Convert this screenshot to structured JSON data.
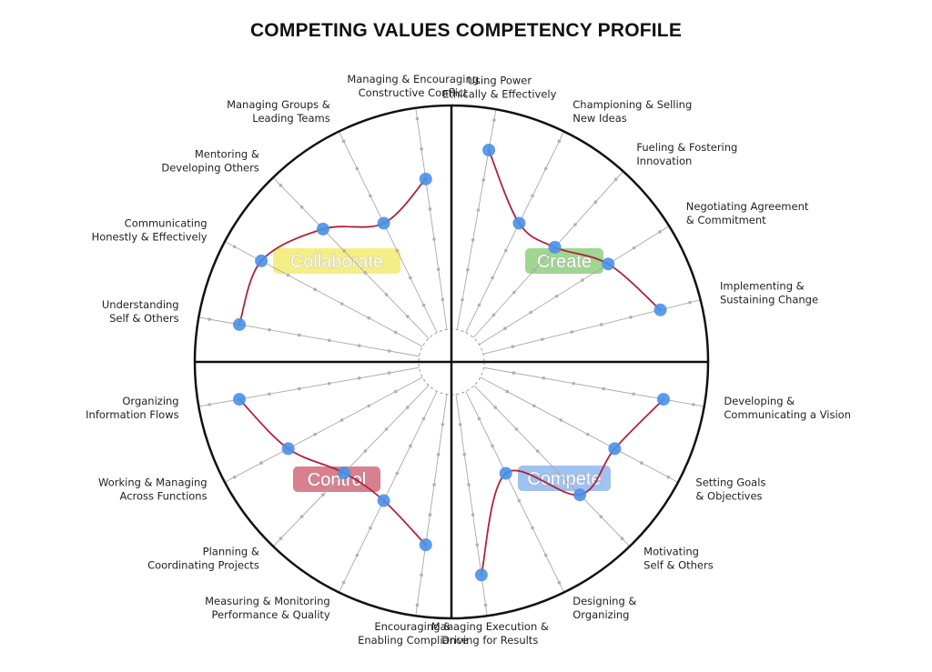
{
  "title": "COMPETING VALUES COMPETENCY PROFILE",
  "chart_data": {
    "type": "radar",
    "title": "COMPETING VALUES COMPETENCY PROFILE",
    "scale_levels": 7,
    "quadrants": [
      {
        "name": "Collaborate",
        "color": "#f2ec6e"
      },
      {
        "name": "Create",
        "color": "#8fcf7e"
      },
      {
        "name": "Compete",
        "color": "#8fb7ef"
      },
      {
        "name": "Control",
        "color": "#d06a7a"
      }
    ],
    "competencies": [
      {
        "label": [
          "Using Power",
          "Ethically & Effectively"
        ],
        "quadrant": "Create",
        "value": 6
      },
      {
        "label": [
          "Championing & Selling",
          "New Ideas"
        ],
        "quadrant": "Create",
        "value": 4
      },
      {
        "label": [
          "Fueling & Fostering",
          "Innovation"
        ],
        "quadrant": "Create",
        "value": 4
      },
      {
        "label": [
          "Negotiating Agreement",
          "& Commitment"
        ],
        "quadrant": "Create",
        "value": 5
      },
      {
        "label": [
          "Implementing &",
          "Sustaining Change"
        ],
        "quadrant": "Create",
        "value": 6
      },
      {
        "label": [
          "Developing &",
          "Communicating a Vision"
        ],
        "quadrant": "Compete",
        "value": 6
      },
      {
        "label": [
          "Setting Goals",
          "& Objectives"
        ],
        "quadrant": "Compete",
        "value": 5
      },
      {
        "label": [
          "Motivating",
          "Self & Others"
        ],
        "quadrant": "Compete",
        "value": 5
      },
      {
        "label": [
          "Designing &",
          "Organizing"
        ],
        "quadrant": "Compete",
        "value": 3
      },
      {
        "label": [
          "Managing Execution &",
          "Driving for Results"
        ],
        "quadrant": "Compete",
        "value": 6
      },
      {
        "label": [
          "Encouraging &",
          "Enabling Compliance"
        ],
        "quadrant": "Control",
        "value": 5
      },
      {
        "label": [
          "Measuring & Monitoring",
          "Performance & Quality"
        ],
        "quadrant": "Control",
        "value": 4
      },
      {
        "label": [
          "Planning &",
          "Coordinating Projects"
        ],
        "quadrant": "Control",
        "value": 4
      },
      {
        "label": [
          "Working & Managing",
          "Across Functions"
        ],
        "quadrant": "Control",
        "value": 5
      },
      {
        "label": [
          "Organizing",
          "Information Flows"
        ],
        "quadrant": "Control",
        "value": 6
      },
      {
        "label": [
          "Understanding",
          "Self & Others"
        ],
        "quadrant": "Collaborate",
        "value": 6
      },
      {
        "label": [
          "Communicating",
          "Honestly & Effectively"
        ],
        "quadrant": "Collaborate",
        "value": 6
      },
      {
        "label": [
          "Mentoring &",
          "Developing Others"
        ],
        "quadrant": "Collaborate",
        "value": 5
      },
      {
        "label": [
          "Managing Groups &",
          "Leading Teams"
        ],
        "quadrant": "Collaborate",
        "value": 4
      },
      {
        "label": [
          "Managing & Encouraging",
          "Constructive Conflict"
        ],
        "quadrant": "Collaborate",
        "value": 5
      }
    ],
    "colors": {
      "profile_line": "#b0223c",
      "point": "#4a90e8",
      "spoke": "#a8a8a8",
      "tick": "#b0b0b0",
      "circle": "#111111"
    }
  }
}
